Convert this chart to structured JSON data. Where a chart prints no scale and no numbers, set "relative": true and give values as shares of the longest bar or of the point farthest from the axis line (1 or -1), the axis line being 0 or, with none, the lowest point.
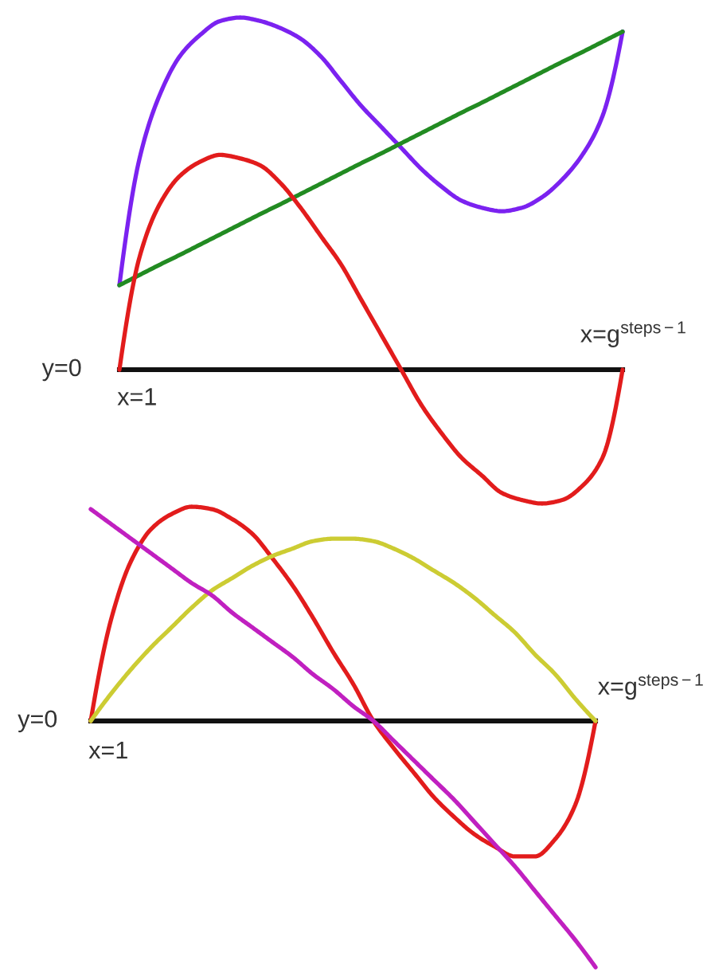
{
  "chart_data": [
    {
      "type": "line",
      "relative": true,
      "categories": [
        null,
        null,
        null,
        null,
        null,
        null,
        null,
        null,
        null,
        null,
        null,
        null,
        null,
        null,
        null,
        null,
        null,
        null,
        null,
        null,
        null,
        null,
        null,
        null,
        null,
        null
      ],
      "series": [
        {
          "color": "#7b22f0",
          "values": [
            0.24,
            0.6,
            0.78,
            0.89,
            0.95,
            0.99,
            1,
            0.99,
            0.97,
            0.94,
            0.89,
            0.82,
            0.75,
            0.69,
            0.63,
            0.57,
            0.52,
            0.48,
            0.46,
            0.45,
            0.46,
            0.49,
            0.54,
            0.61,
            0.72,
            0.96
          ]
        },
        {
          "color": "#228b22",
          "values": [
            0.24,
            0.269,
            0.298,
            0.326,
            0.355,
            0.384,
            0.413,
            0.442,
            0.47,
            0.499,
            0.528,
            0.557,
            0.586,
            0.614,
            0.643,
            0.672,
            0.701,
            0.73,
            0.758,
            0.787,
            0.816,
            0.845,
            0.874,
            0.902,
            0.931,
            0.96
          ]
        },
        {
          "color": "#e21c1c",
          "values": [
            0,
            0.32,
            0.47,
            0.55,
            0.59,
            0.61,
            0.6,
            0.58,
            0.53,
            0.46,
            0.38,
            0.3,
            0.2,
            0.1,
            0,
            -0.1,
            -0.18,
            -0.25,
            -0.3,
            -0.35,
            -0.37,
            -0.38,
            -0.37,
            -0.33,
            -0.25,
            0
          ]
        }
      ],
      "annotations": [
        "y=0",
        "x=1",
        "x=g$^{steps−1}$"
      ]
    },
    {
      "type": "line",
      "relative": true,
      "categories": [
        null,
        null,
        null,
        null,
        null,
        null,
        null,
        null,
        null,
        null,
        null,
        null,
        null,
        null,
        null,
        null,
        null,
        null,
        null,
        null,
        null,
        null,
        null,
        null,
        null,
        null
      ],
      "series": [
        {
          "color": "#e21c1c",
          "values": [
            0,
            0.41,
            0.65,
            0.78,
            0.84,
            0.87,
            0.86,
            0.82,
            0.76,
            0.66,
            0.55,
            0.42,
            0.28,
            0.15,
            0,
            -0.11,
            -0.21,
            -0.31,
            -0.39,
            -0.46,
            -0.51,
            -0.55,
            -0.55,
            -0.48,
            -0.34,
            0
          ]
        },
        {
          "color": "#cccc33",
          "values": [
            0,
            0.11,
            0.21,
            0.3,
            0.38,
            0.46,
            0.53,
            0.58,
            0.63,
            0.67,
            0.7,
            0.73,
            0.74,
            0.74,
            0.73,
            0.7,
            0.66,
            0.61,
            0.56,
            0.5,
            0.43,
            0.36,
            0.27,
            0.19,
            0.09,
            0
          ]
        },
        {
          "color": "#c020c0",
          "values": [
            0.86,
            0.8,
            0.74,
            0.68,
            0.62,
            0.56,
            0.51,
            0.44,
            0.38,
            0.32,
            0.26,
            0.19,
            0.13,
            0.06,
            0,
            -0.08,
            -0.16,
            -0.24,
            -0.32,
            -0.41,
            -0.5,
            -0.59,
            -0.69,
            -0.79,
            -0.89,
            -1
          ]
        }
      ],
      "annotations": [
        "y=0",
        "x=1",
        "x=g$^{steps−1}$"
      ]
    }
  ]
}
